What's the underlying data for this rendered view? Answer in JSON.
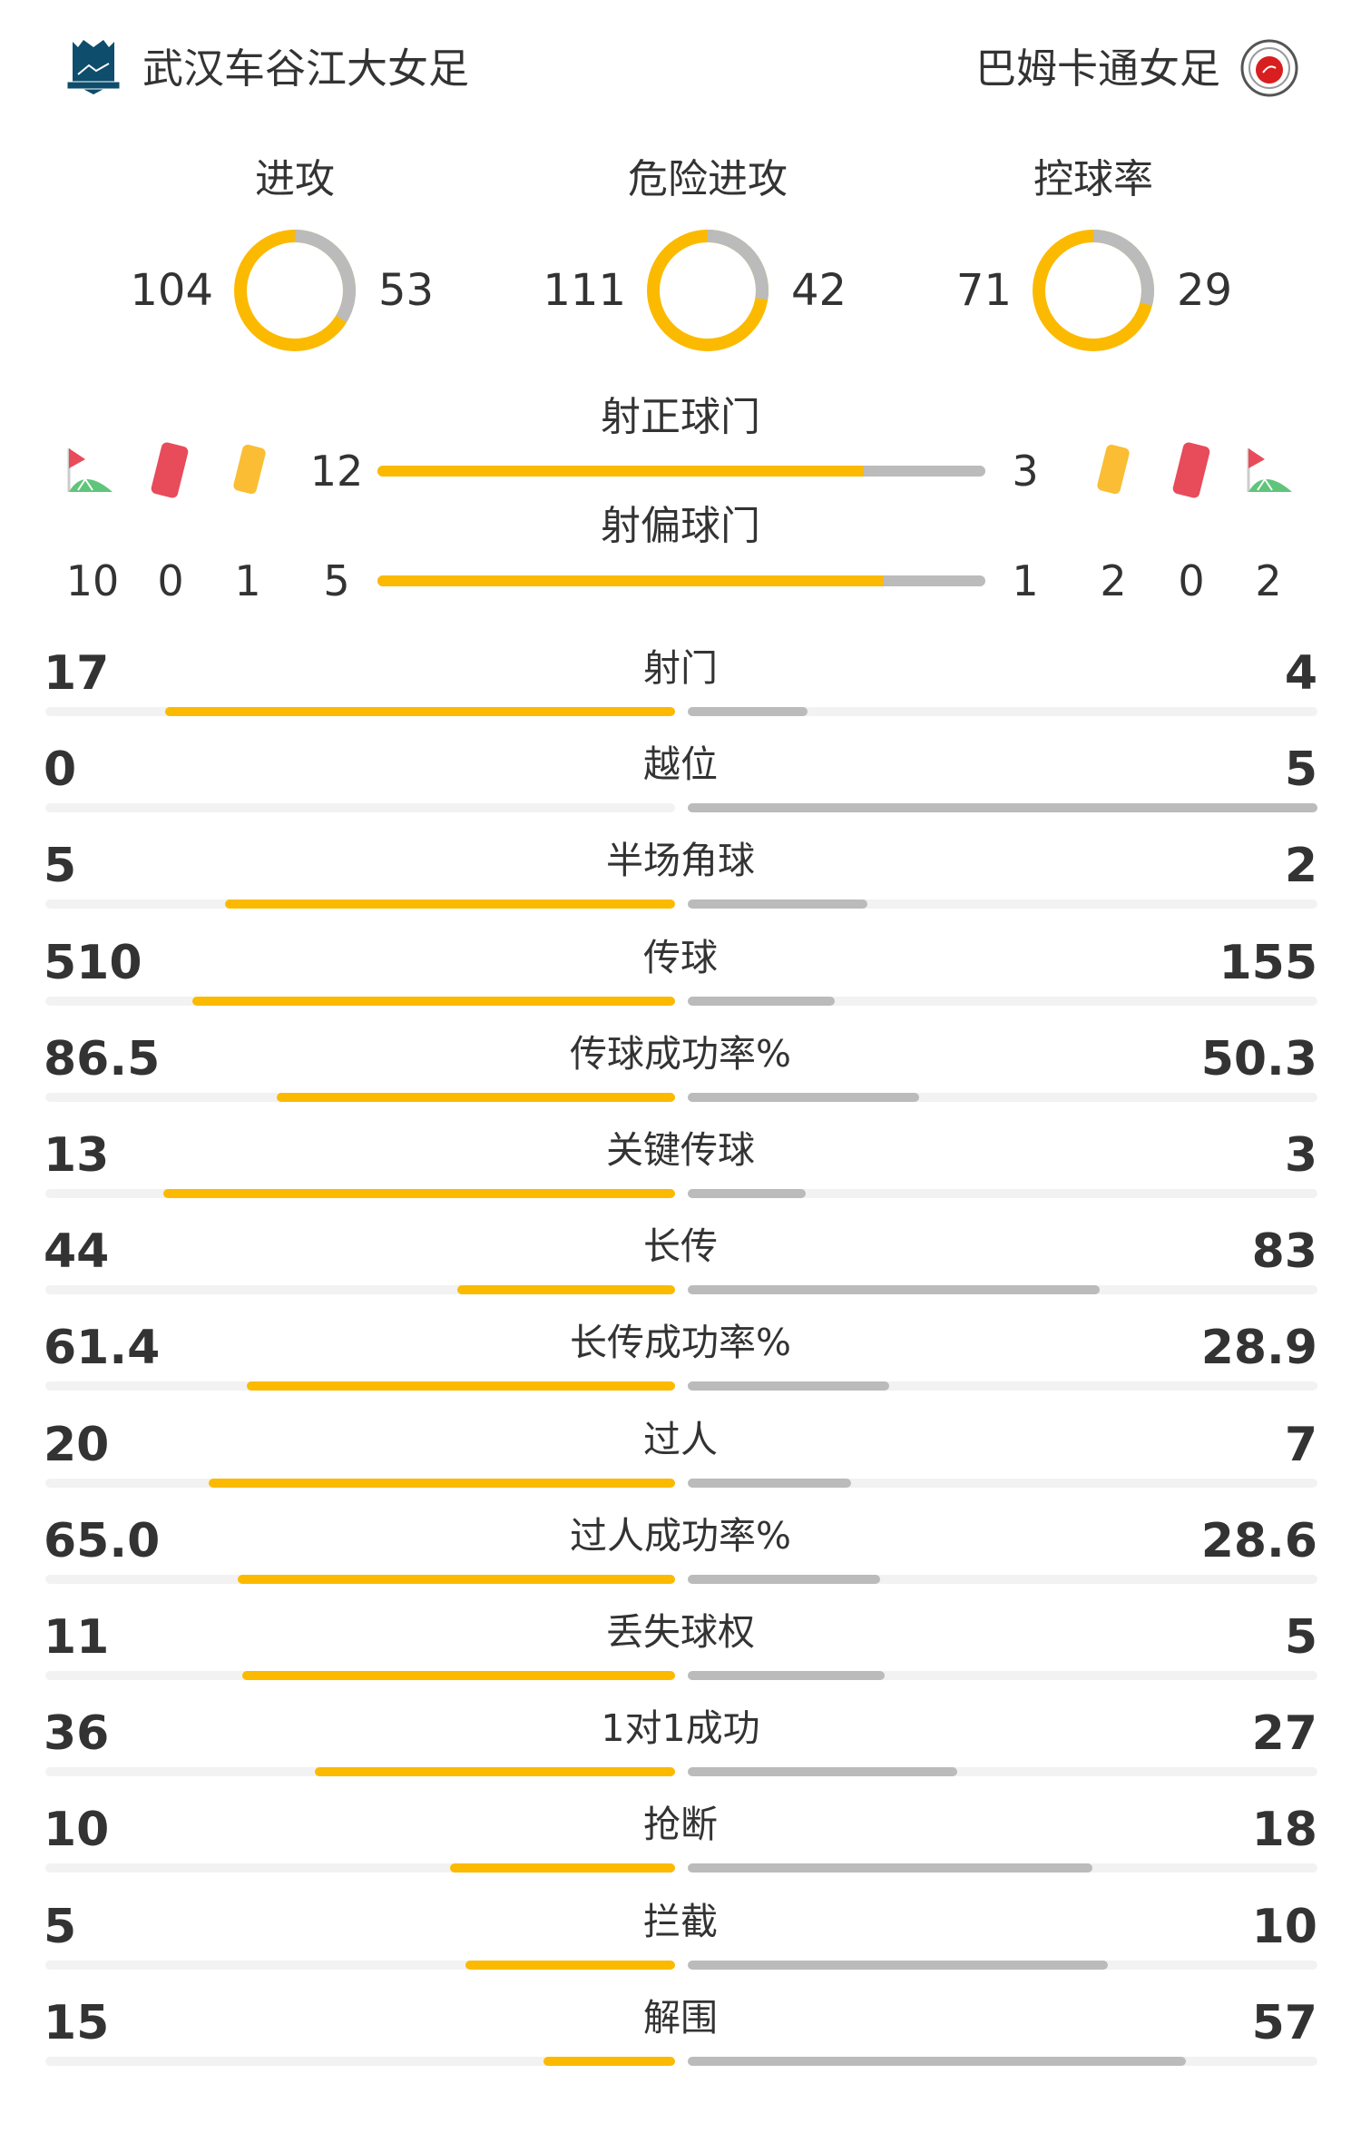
{
  "home": {
    "name": "武汉车谷江大女足",
    "logo": "shield-crest-logo"
  },
  "away": {
    "name": "巴姆卡通女足",
    "logo": "round-red-crest-logo"
  },
  "colors": {
    "home": "#fbba00",
    "away": "#bbbbbb",
    "track": "#f2f2f2"
  },
  "donuts": [
    {
      "label": "进攻",
      "home": 104,
      "away": 53
    },
    {
      "label": "危险进攻",
      "home": 111,
      "away": 42
    },
    {
      "label": "控球率",
      "home": 71,
      "away": 29
    }
  ],
  "shots_on": {
    "label": "射正球门",
    "home": 12,
    "away": 3
  },
  "shots_off": {
    "label": "射偏球门",
    "home": 5,
    "away": 1
  },
  "events": {
    "home": {
      "corners": 10,
      "red_cards": 0,
      "yellow_cards": 1
    },
    "away": {
      "yellow_cards": 2,
      "red_cards": 0,
      "corners": 2
    }
  },
  "stats": [
    {
      "label": "射门",
      "home": "17",
      "away": "4"
    },
    {
      "label": "越位",
      "home": "0",
      "away": "5"
    },
    {
      "label": "半场角球",
      "home": "5",
      "away": "2"
    },
    {
      "label": "传球",
      "home": "510",
      "away": "155"
    },
    {
      "label": "传球成功率%",
      "home": "86.5",
      "away": "50.3"
    },
    {
      "label": "关键传球",
      "home": "13",
      "away": "3"
    },
    {
      "label": "长传",
      "home": "44",
      "away": "83"
    },
    {
      "label": "长传成功率%",
      "home": "61.4",
      "away": "28.9"
    },
    {
      "label": "过人",
      "home": "20",
      "away": "7"
    },
    {
      "label": "过人成功率%",
      "home": "65.0",
      "away": "28.6"
    },
    {
      "label": "丢失球权",
      "home": "11",
      "away": "5"
    },
    {
      "label": "1对1成功",
      "home": "36",
      "away": "27"
    },
    {
      "label": "抢断",
      "home": "10",
      "away": "18"
    },
    {
      "label": "拦截",
      "home": "5",
      "away": "10"
    },
    {
      "label": "解围",
      "home": "15",
      "away": "57"
    }
  ]
}
